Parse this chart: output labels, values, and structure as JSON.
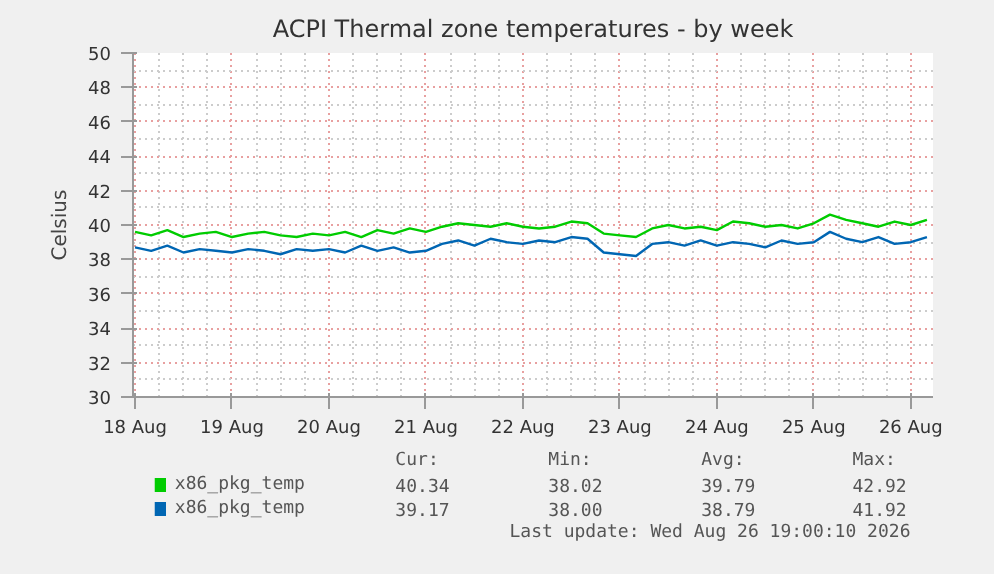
{
  "chart_data": {
    "type": "line",
    "title": "ACPI Thermal zone temperatures - by week",
    "ylabel": "Celsius",
    "x": [
      "2026-08-18T00:00",
      "2026-08-18T04:00",
      "2026-08-18T08:00",
      "2026-08-18T12:00",
      "2026-08-18T16:00",
      "2026-08-18T20:00",
      "2026-08-19T00:00",
      "2026-08-19T04:00",
      "2026-08-19T08:00",
      "2026-08-19T12:00",
      "2026-08-19T16:00",
      "2026-08-19T20:00",
      "2026-08-20T00:00",
      "2026-08-20T04:00",
      "2026-08-20T08:00",
      "2026-08-20T12:00",
      "2026-08-20T16:00",
      "2026-08-20T20:00",
      "2026-08-21T00:00",
      "2026-08-21T04:00",
      "2026-08-21T08:00",
      "2026-08-21T12:00",
      "2026-08-21T16:00",
      "2026-08-21T20:00",
      "2026-08-22T00:00",
      "2026-08-22T04:00",
      "2026-08-22T08:00",
      "2026-08-22T12:00",
      "2026-08-22T16:00",
      "2026-08-22T20:00",
      "2026-08-23T00:00",
      "2026-08-23T04:00",
      "2026-08-23T08:00",
      "2026-08-23T12:00",
      "2026-08-23T16:00",
      "2026-08-23T20:00",
      "2026-08-24T00:00",
      "2026-08-24T04:00",
      "2026-08-24T08:00",
      "2026-08-24T12:00",
      "2026-08-24T16:00",
      "2026-08-24T20:00",
      "2026-08-25T00:00",
      "2026-08-25T04:00",
      "2026-08-25T08:00",
      "2026-08-25T12:00",
      "2026-08-25T16:00",
      "2026-08-25T20:00",
      "2026-08-26T00:00",
      "2026-08-26T04:00"
    ],
    "series": [
      {
        "name": "x86_pkg_temp",
        "color": "#00cc00",
        "values": [
          39.6,
          39.4,
          39.7,
          39.3,
          39.5,
          39.6,
          39.3,
          39.5,
          39.6,
          39.4,
          39.3,
          39.5,
          39.4,
          39.6,
          39.3,
          39.7,
          39.5,
          39.8,
          39.6,
          39.9,
          40.1,
          40.0,
          39.9,
          40.1,
          39.9,
          39.8,
          39.9,
          40.2,
          40.1,
          39.5,
          39.4,
          39.3,
          39.8,
          40.0,
          39.8,
          39.9,
          39.7,
          40.2,
          40.1,
          39.9,
          40.0,
          39.8,
          40.1,
          40.6,
          40.3,
          40.1,
          39.9,
          40.2,
          40.0,
          40.3
        ]
      },
      {
        "name": "x86_pkg_temp",
        "color": "#0066b3",
        "values": [
          38.7,
          38.5,
          38.8,
          38.4,
          38.6,
          38.5,
          38.4,
          38.6,
          38.5,
          38.3,
          38.6,
          38.5,
          38.6,
          38.4,
          38.8,
          38.5,
          38.7,
          38.4,
          38.5,
          38.9,
          39.1,
          38.8,
          39.2,
          39.0,
          38.9,
          39.1,
          39.0,
          39.3,
          39.2,
          38.4,
          38.3,
          38.2,
          38.9,
          39.0,
          38.8,
          39.1,
          38.8,
          39.0,
          38.9,
          38.7,
          39.1,
          38.9,
          39.0,
          39.6,
          39.2,
          39.0,
          39.3,
          38.9,
          39.0,
          39.3
        ]
      }
    ],
    "xlim": [
      "2026-08-17T23:30",
      "2026-08-26T05:30"
    ],
    "xticks": [
      {
        "value": "2026-08-18",
        "label": "18 Aug"
      },
      {
        "value": "2026-08-19",
        "label": "19 Aug"
      },
      {
        "value": "2026-08-20",
        "label": "20 Aug"
      },
      {
        "value": "2026-08-21",
        "label": "21 Aug"
      },
      {
        "value": "2026-08-22",
        "label": "22 Aug"
      },
      {
        "value": "2026-08-23",
        "label": "23 Aug"
      },
      {
        "value": "2026-08-24",
        "label": "24 Aug"
      },
      {
        "value": "2026-08-25",
        "label": "25 Aug"
      },
      {
        "value": "2026-08-26",
        "label": "26 Aug"
      }
    ],
    "ylim": [
      30,
      50
    ],
    "yticks": [
      30,
      32,
      34,
      36,
      38,
      40,
      42,
      44,
      46,
      48,
      50
    ],
    "grid": true,
    "legend": "bottom",
    "line_style": "solid",
    "marker": "none",
    "annotations": [
      "Cur:",
      "Min:",
      "Avg:",
      "Max:",
      "40.34",
      "38.02",
      "39.79",
      "42.92",
      "39.17",
      "38.00",
      "38.79",
      "41.92",
      "Last update: Wed Aug 26 19:00:10 2026"
    ]
  }
}
